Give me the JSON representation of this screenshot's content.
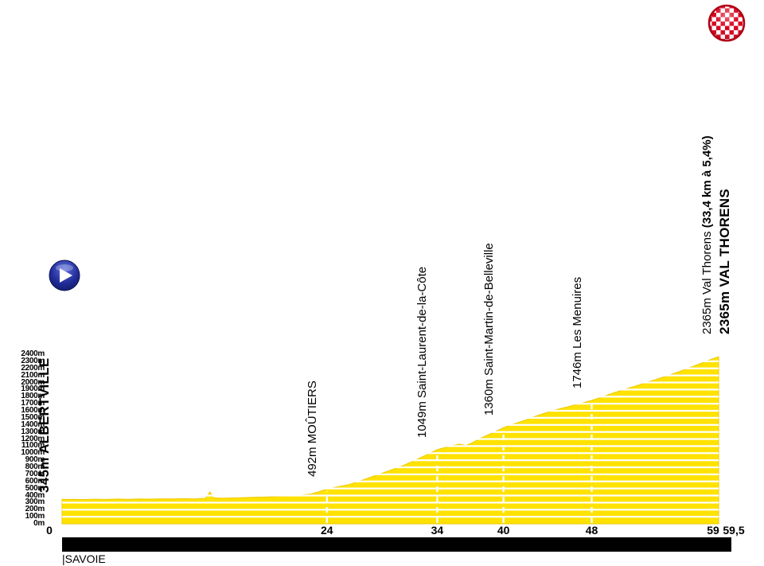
{
  "region_label": "|SAVOIE",
  "colors": {
    "profile_yellow": "#ffe200",
    "profile_edge": "#edc900",
    "gridline_white": "#ffffff",
    "bar_black": "#000000",
    "start_icon_blue": "#1f2c95",
    "finish_icon_red": "#d8001d"
  },
  "icons": {
    "start": "start-play-icon",
    "finish": "finish-checkered-icon"
  },
  "chart_data": {
    "type": "area",
    "title": "",
    "xlabel": "",
    "ylabel": "",
    "xlim": [
      0,
      59.5
    ],
    "ylim": [
      0,
      2400
    ],
    "grid": "horizontal white lines every 100 m over yellow profile",
    "legend": "none",
    "x_ticks": [
      {
        "km": 0,
        "label": "0"
      },
      {
        "km": 24,
        "label": "24"
      },
      {
        "km": 34,
        "label": "34"
      },
      {
        "km": 40,
        "label": "40"
      },
      {
        "km": 48,
        "label": "48"
      },
      {
        "km": 59,
        "label": "59"
      }
    ],
    "x_end_label": "59,5",
    "y_tick_labels": [
      "0m",
      "100m",
      "200m",
      "300m",
      "400m",
      "500m",
      "600m",
      "700m",
      "800m",
      "900m",
      "1000m",
      "1100m",
      "1200m",
      "1300m",
      "1400m",
      "1500m",
      "1600m",
      "1700m",
      "1800m",
      "1900m",
      "2000m",
      "2100m",
      "2200m",
      "2300m",
      "2400m"
    ],
    "waypoints": [
      {
        "km": 0,
        "elevation_m": 345,
        "label": "345m ALBERTVILLE",
        "style": "start"
      },
      {
        "km": 24,
        "elevation_m": 492,
        "label": "492m MOÛTIERS",
        "style": "town"
      },
      {
        "km": 34,
        "elevation_m": 1049,
        "label": "1049m Saint-Laurent-de-la-Côte",
        "style": "town"
      },
      {
        "km": 40,
        "elevation_m": 1360,
        "label": "1360m Saint-Martin-de-Belleville",
        "style": "town"
      },
      {
        "km": 48,
        "elevation_m": 1746,
        "label": "1746m Les Menuires",
        "style": "town"
      },
      {
        "km": 59.5,
        "elevation_m": 2365,
        "label": "2365m Val Thorens ",
        "label_bold": "(33,4 km à 5,4%)",
        "style": "finish-sub"
      },
      {
        "km": 59.5,
        "elevation_m": 2365,
        "label": "2365m VAL THORENS",
        "style": "finish"
      }
    ],
    "profile": [
      [
        0,
        345
      ],
      [
        1,
        347
      ],
      [
        2,
        344
      ],
      [
        3,
        348
      ],
      [
        4,
        345
      ],
      [
        5,
        350
      ],
      [
        6,
        347
      ],
      [
        7,
        352
      ],
      [
        8,
        349
      ],
      [
        9,
        354
      ],
      [
        10,
        351
      ],
      [
        11,
        356
      ],
      [
        12,
        353
      ],
      [
        13,
        360
      ],
      [
        13.4,
        452
      ],
      [
        13.7,
        368
      ],
      [
        14.5,
        362
      ],
      [
        15.5,
        366
      ],
      [
        16.5,
        371
      ],
      [
        17.5,
        376
      ],
      [
        18.5,
        381
      ],
      [
        19.5,
        387
      ],
      [
        20.5,
        394
      ],
      [
        21.5,
        403
      ],
      [
        22.5,
        420
      ],
      [
        23.2,
        450
      ],
      [
        24,
        492
      ],
      [
        25,
        524
      ],
      [
        26,
        556
      ],
      [
        27,
        606
      ],
      [
        28,
        660
      ],
      [
        29,
        716
      ],
      [
        30,
        772
      ],
      [
        31,
        830
      ],
      [
        32,
        900
      ],
      [
        33,
        973
      ],
      [
        34,
        1049
      ],
      [
        35,
        1092
      ],
      [
        36,
        1128
      ],
      [
        36.6,
        1108
      ],
      [
        37.2,
        1150
      ],
      [
        38,
        1216
      ],
      [
        39,
        1288
      ],
      [
        40,
        1360
      ],
      [
        41,
        1418
      ],
      [
        42,
        1468
      ],
      [
        43,
        1528
      ],
      [
        44,
        1578
      ],
      [
        45,
        1624
      ],
      [
        46,
        1664
      ],
      [
        47,
        1704
      ],
      [
        48,
        1746
      ],
      [
        49,
        1800
      ],
      [
        50,
        1854
      ],
      [
        51,
        1904
      ],
      [
        52,
        1950
      ],
      [
        53,
        2002
      ],
      [
        54,
        2052
      ],
      [
        55,
        2104
      ],
      [
        56,
        2158
      ],
      [
        57,
        2218
      ],
      [
        58,
        2278
      ],
      [
        59,
        2338
      ],
      [
        59.5,
        2365
      ]
    ]
  }
}
